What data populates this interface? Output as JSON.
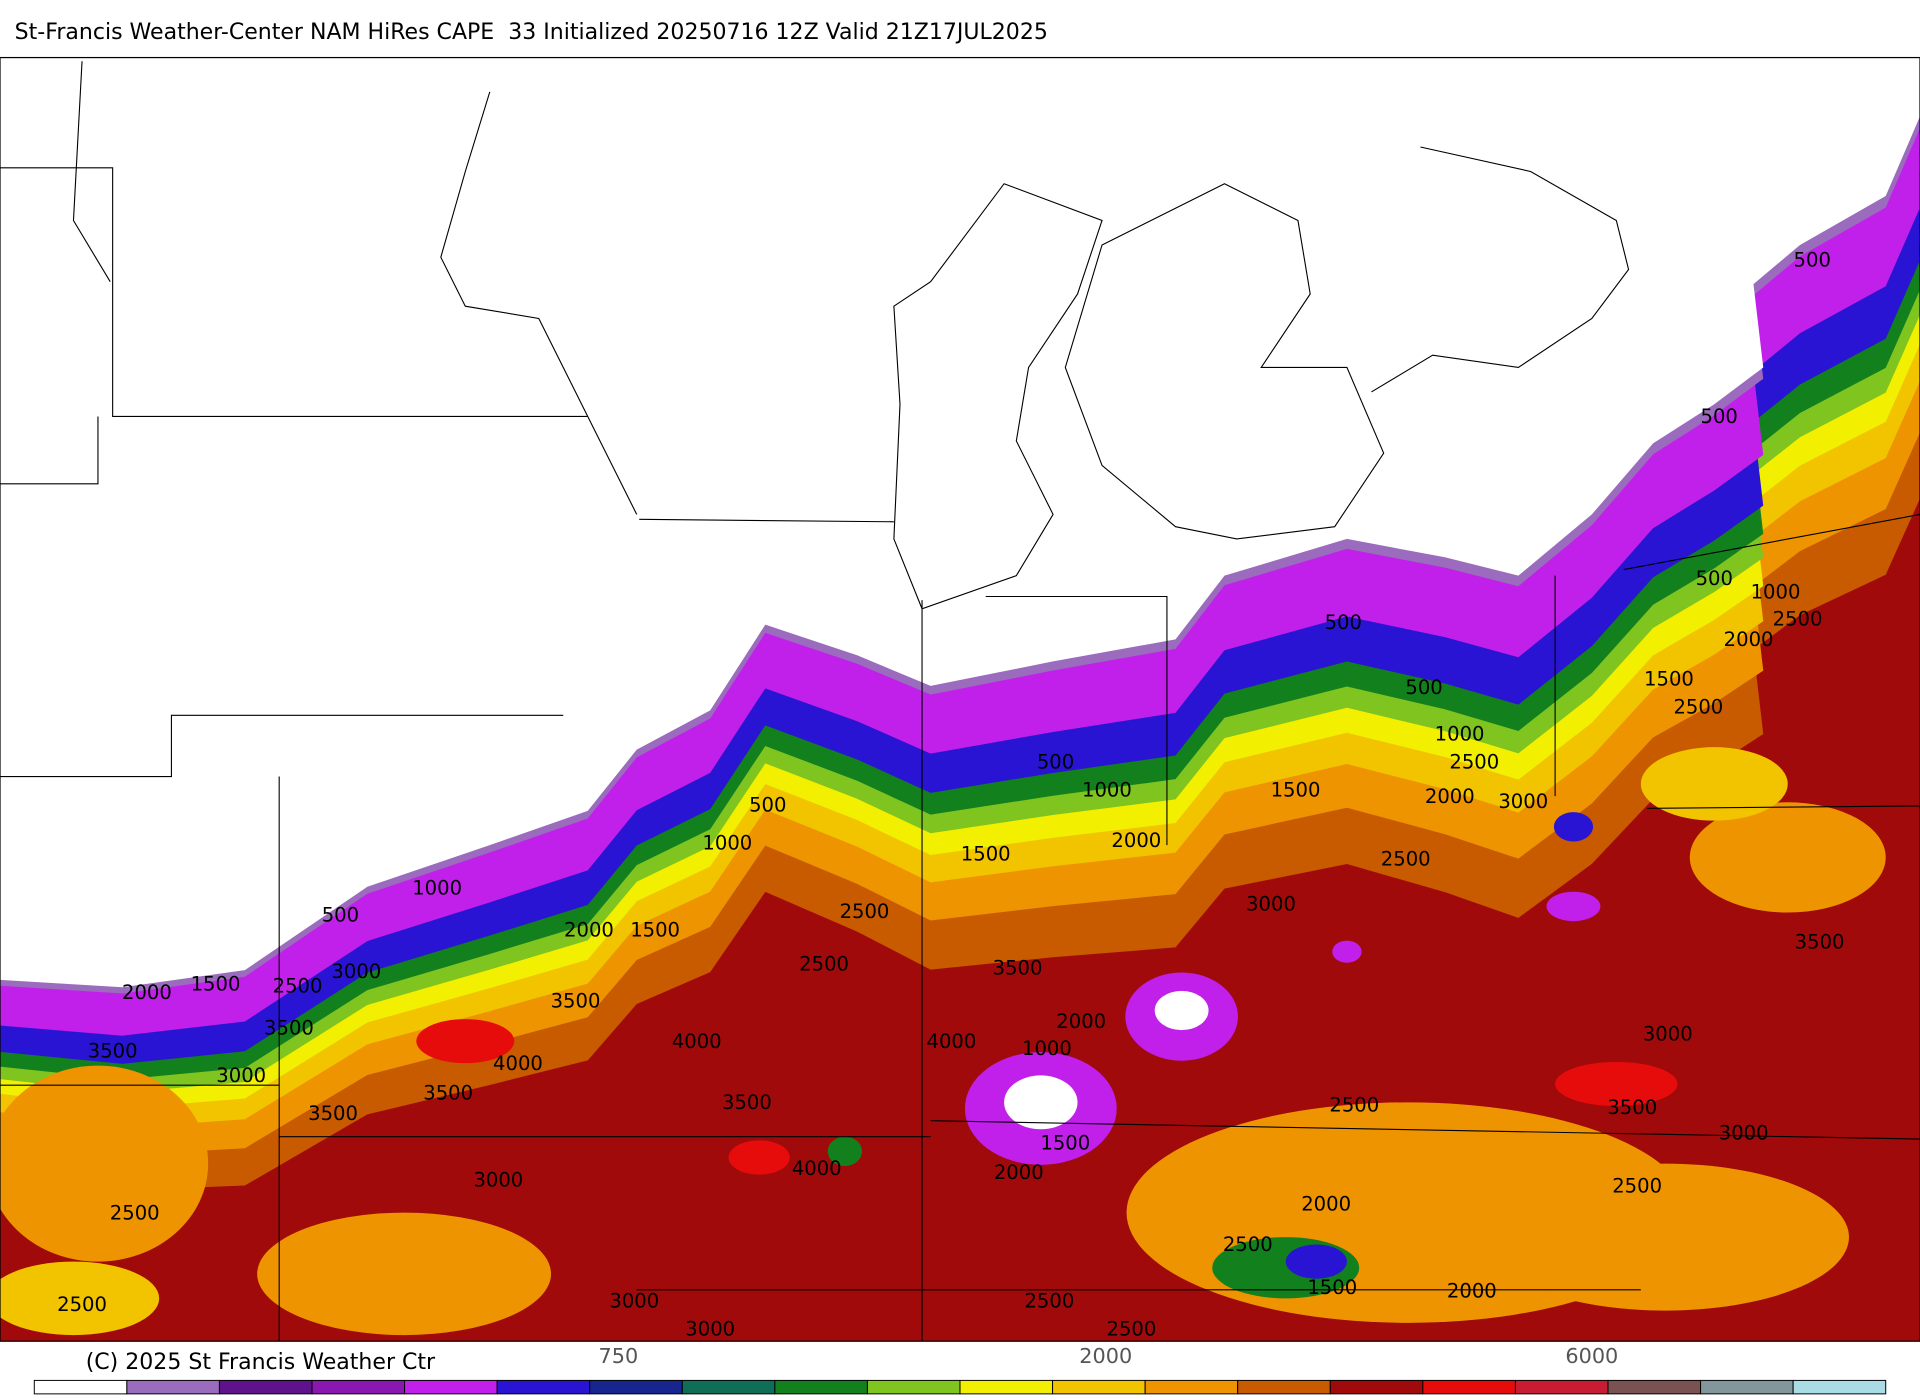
{
  "title": "St-Francis Weather-Center NAM HiRes CAPE  33 Initialized 20250716 12Z Valid 21Z17JUL2025",
  "map": {
    "contour_labels": [
      "500",
      "500",
      "500",
      "1000",
      "2500",
      "2000",
      "500",
      "500",
      "1500",
      "2500",
      "1000",
      "2500",
      "500",
      "1000",
      "1500",
      "2000",
      "3000",
      "500",
      "1000",
      "1500",
      "2000",
      "2500",
      "1000",
      "500",
      "2500",
      "3000",
      "2000",
      "1500",
      "2000",
      "1500",
      "2500",
      "3000",
      "2500",
      "3500",
      "3500",
      "3500",
      "2000",
      "3500",
      "4000",
      "4000",
      "1000",
      "4000",
      "3000",
      "3500",
      "3500",
      "3500",
      "2500",
      "3500",
      "3000",
      "1500",
      "4000",
      "2000",
      "3000",
      "2500",
      "2000",
      "2500",
      "2500",
      "1500",
      "2000",
      "2500",
      "3000",
      "2500",
      "3000",
      "2500",
      "3000",
      "3500"
    ]
  },
  "colorbar": {
    "colors": [
      "#ffffff",
      "#9b6bbd",
      "#5e128c",
      "#8a18b0",
      "#c020ea",
      "#2a14d4",
      "#16268e",
      "#0e6e58",
      "#12801c",
      "#80c420",
      "#f2f000",
      "#f2c400",
      "#ee9400",
      "#c85a00",
      "#a00a0a",
      "#e60c0c",
      "#c81c34",
      "#7a5252",
      "#82969c",
      "#aadce6"
    ],
    "labels": [
      "750",
      "2000",
      "6000"
    ]
  },
  "footer": {
    "copyright": "(C) 2025 St Francis Weather Ctr"
  }
}
